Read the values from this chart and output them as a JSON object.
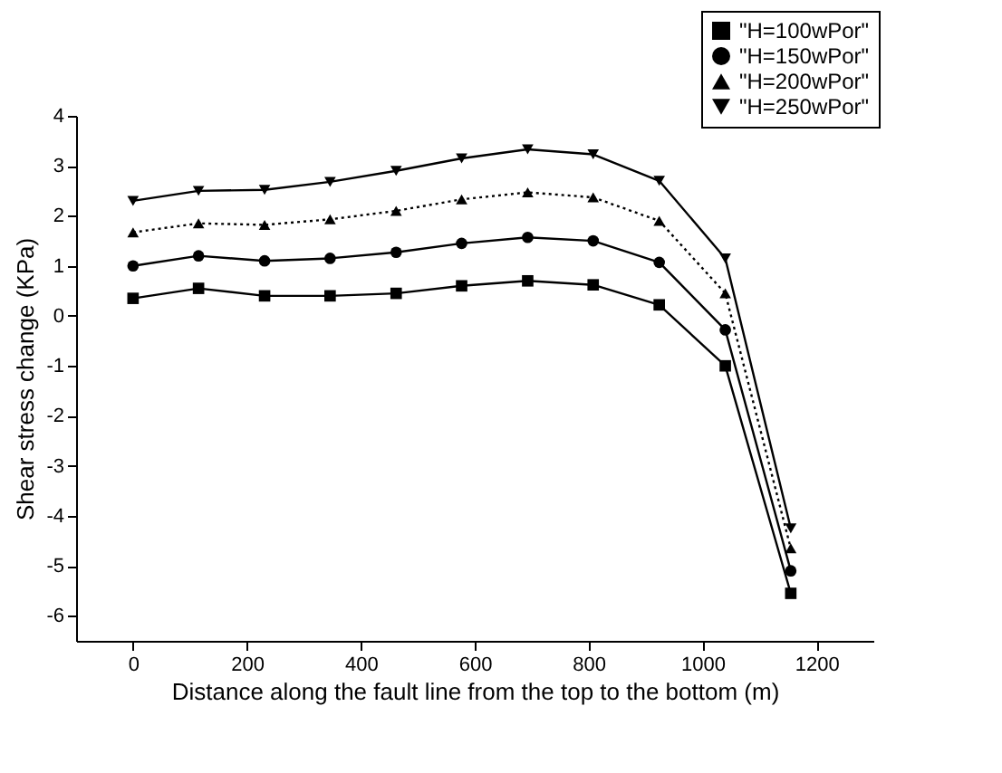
{
  "chart_data": {
    "type": "line",
    "xlabel": "Distance along the fault line from the top to the bottom (m)",
    "ylabel": "Shear stress change (KPa)",
    "x": [
      0,
      115,
      231,
      346,
      462,
      577,
      693,
      808,
      924,
      1040,
      1155
    ],
    "series": [
      {
        "name": "\"H=100wPor\"",
        "color": "#000000",
        "marker": "square",
        "line_style": "solid",
        "values": [
          0.35,
          0.55,
          0.4,
          0.4,
          0.45,
          0.6,
          0.7,
          0.62,
          0.22,
          -1.0,
          -5.55
        ]
      },
      {
        "name": "\"H=150wPor\"",
        "color": "#000000",
        "marker": "circle",
        "line_style": "solid",
        "values": [
          1.0,
          1.2,
          1.1,
          1.15,
          1.27,
          1.45,
          1.57,
          1.5,
          1.07,
          -0.28,
          -5.1
        ]
      },
      {
        "name": "\"H=200wPor\"",
        "color": "#000000",
        "marker": "triangle",
        "line_style": "dotted",
        "values": [
          1.67,
          1.85,
          1.82,
          1.93,
          2.1,
          2.33,
          2.47,
          2.37,
          1.9,
          0.45,
          -4.65
        ]
      },
      {
        "name": "\"H=250wPor\"",
        "color": "#000000",
        "marker": "triangle-down",
        "line_style": "solid",
        "values": [
          2.3,
          2.5,
          2.52,
          2.68,
          2.9,
          3.15,
          3.33,
          3.23,
          2.7,
          1.15,
          -4.25
        ]
      }
    ],
    "xlim": [
      -100,
      1300
    ],
    "xticks": [
      0,
      200,
      400,
      600,
      800,
      1000,
      1200
    ],
    "ylim": [
      -6.5,
      4
    ],
    "yticks": [
      -6,
      -5,
      -4,
      -3,
      -2,
      -1,
      0,
      1,
      2,
      3,
      4
    ],
    "grid": false,
    "legend": "top right"
  }
}
